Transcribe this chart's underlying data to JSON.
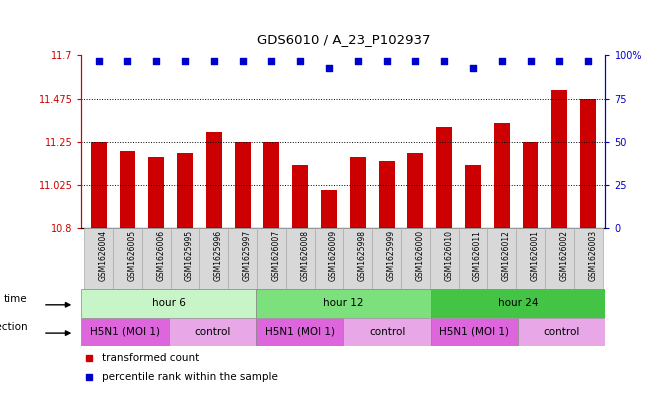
{
  "title": "GDS6010 / A_23_P102937",
  "samples": [
    "GSM1626004",
    "GSM1626005",
    "GSM1626006",
    "GSM1625995",
    "GSM1625996",
    "GSM1625997",
    "GSM1626007",
    "GSM1626008",
    "GSM1626009",
    "GSM1625998",
    "GSM1625999",
    "GSM1626000",
    "GSM1626010",
    "GSM1626011",
    "GSM1626012",
    "GSM1626001",
    "GSM1626002",
    "GSM1626003"
  ],
  "bar_values": [
    11.25,
    11.2,
    11.17,
    11.19,
    11.3,
    11.25,
    11.25,
    11.13,
    11.0,
    11.17,
    11.15,
    11.19,
    11.33,
    11.13,
    11.35,
    11.25,
    11.52,
    11.475
  ],
  "percentile_values": [
    97,
    97,
    97,
    97,
    97,
    97,
    97,
    97,
    93,
    97,
    97,
    97,
    97,
    93,
    97,
    97,
    97,
    97
  ],
  "bar_color": "#cc0000",
  "percentile_color": "#0000cc",
  "ymin": 10.8,
  "ymax": 11.7,
  "yticks": [
    10.8,
    11.025,
    11.25,
    11.475,
    11.7
  ],
  "ytick_labels": [
    "10.8",
    "11.025",
    "11.25",
    "11.475",
    "11.7"
  ],
  "y2min": 0,
  "y2max": 100,
  "y2ticks": [
    0,
    25,
    50,
    75,
    100
  ],
  "y2tick_labels": [
    "0",
    "25",
    "50",
    "75",
    "100%"
  ],
  "dotted_lines": [
    11.025,
    11.25,
    11.475
  ],
  "time_colors": [
    "#c8f5c8",
    "#7ce07c",
    "#44c444"
  ],
  "time_labels": [
    "hour 6",
    "hour 12",
    "hour 24"
  ],
  "inf_labels": [
    "H5N1 (MOI 1)",
    "control",
    "H5N1 (MOI 1)",
    "control",
    "H5N1 (MOI 1)",
    "control"
  ],
  "inf_colors": [
    "#dd66dd",
    "#e8a8e8",
    "#dd66dd",
    "#e8a8e8",
    "#dd66dd",
    "#e8a8e8"
  ],
  "legend_items": [
    {
      "label": "transformed count",
      "color": "#cc0000"
    },
    {
      "label": "percentile rank within the sample",
      "color": "#0000cc"
    }
  ],
  "bg_color": "#ffffff",
  "label_bg": "#d8d8d8",
  "axis_color": "#cc0000",
  "axis2_color": "#0000cc"
}
